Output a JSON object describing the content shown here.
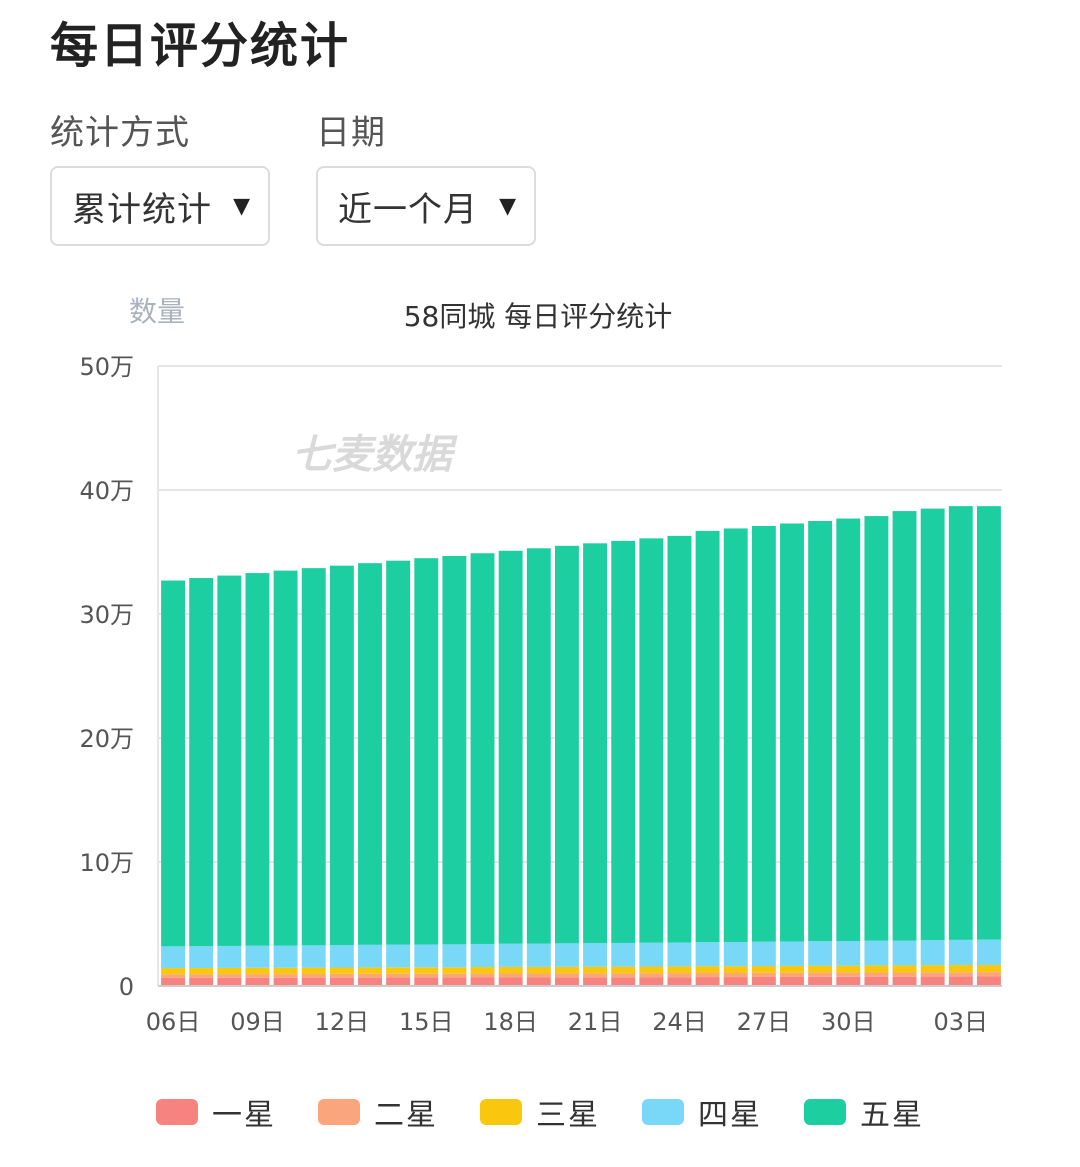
{
  "page": {
    "title": "每日评分统计"
  },
  "filters": {
    "mode": {
      "label": "统计方式",
      "value": "累计统计"
    },
    "date": {
      "label": "日期",
      "value": "近一个月"
    }
  },
  "colors": {
    "one_star": "#f6837f",
    "two_star": "#fba57d",
    "three_star": "#f9c80e",
    "four_star": "#79d7f7",
    "five_star": "#1dcfa0"
  },
  "chart_data": {
    "type": "bar",
    "stacked": true,
    "title": "58同城 每日评分统计",
    "ylabel": "数量",
    "xlabel": "",
    "ylim": [
      0,
      500000
    ],
    "yticks": [
      0,
      100000,
      200000,
      300000,
      400000,
      500000
    ],
    "ytick_labels": [
      "0",
      "10万",
      "20万",
      "30万",
      "40万",
      "50万"
    ],
    "grid": true,
    "legend_position": "bottom",
    "watermark": "七麦数据",
    "categories": [
      "06日",
      "07日",
      "08日",
      "09日",
      "10日",
      "11日",
      "12日",
      "13日",
      "14日",
      "15日",
      "16日",
      "17日",
      "18日",
      "19日",
      "20日",
      "21日",
      "22日",
      "23日",
      "24日",
      "25日",
      "26日",
      "27日",
      "28日",
      "29日",
      "30日",
      "31日",
      "01日",
      "02日",
      "03日",
      "04日"
    ],
    "xtick_labels": [
      "06日",
      "09日",
      "12日",
      "15日",
      "18日",
      "21日",
      "24日",
      "27日",
      "30日",
      "03日"
    ],
    "series": [
      {
        "name": "一星",
        "color": "#f6837f",
        "values": [
          6500,
          6500,
          6600,
          6600,
          6600,
          6700,
          6700,
          6700,
          6800,
          6800,
          6800,
          6900,
          6900,
          6900,
          7000,
          7000,
          7000,
          7100,
          7100,
          7200,
          7200,
          7300,
          7300,
          7400,
          7400,
          7500,
          7500,
          7600,
          7600,
          7700
        ]
      },
      {
        "name": "二星",
        "color": "#fba57d",
        "values": [
          3000,
          3000,
          3000,
          3000,
          3000,
          3000,
          3100,
          3100,
          3100,
          3100,
          3100,
          3100,
          3200,
          3200,
          3200,
          3200,
          3200,
          3200,
          3300,
          3300,
          3300,
          3300,
          3300,
          3400,
          3400,
          3400,
          3400,
          3500,
          3500,
          3500
        ]
      },
      {
        "name": "三星",
        "color": "#f9c80e",
        "values": [
          5000,
          5000,
          5000,
          5100,
          5100,
          5100,
          5100,
          5200,
          5200,
          5200,
          5200,
          5300,
          5300,
          5300,
          5300,
          5400,
          5400,
          5400,
          5400,
          5500,
          5500,
          5500,
          5600,
          5600,
          5600,
          5700,
          5700,
          5700,
          5800,
          5800
        ]
      },
      {
        "name": "四星",
        "color": "#79d7f7",
        "values": [
          17500,
          17600,
          17700,
          17800,
          17900,
          18000,
          18100,
          18200,
          18300,
          18400,
          18500,
          18600,
          18700,
          18800,
          18900,
          19000,
          19100,
          19200,
          19300,
          19400,
          19500,
          19600,
          19700,
          19800,
          19900,
          20000,
          20100,
          20200,
          20300,
          20400
        ]
      },
      {
        "name": "五星",
        "color": "#1dcfa0",
        "values": [
          295000,
          296900,
          298700,
          300500,
          302400,
          304200,
          306000,
          307800,
          309600,
          311500,
          313200,
          315100,
          316900,
          318800,
          320600,
          322400,
          324300,
          326100,
          327900,
          331600,
          333500,
          335300,
          337100,
          338800,
          340700,
          342400,
          346300,
          348000,
          349800,
          349600
        ]
      }
    ]
  },
  "legend": {
    "items": [
      {
        "label": "一星",
        "color": "#f6837f"
      },
      {
        "label": "二星",
        "color": "#fba57d"
      },
      {
        "label": "三星",
        "color": "#f9c80e"
      },
      {
        "label": "四星",
        "color": "#79d7f7"
      },
      {
        "label": "五星",
        "color": "#1dcfa0"
      }
    ]
  }
}
